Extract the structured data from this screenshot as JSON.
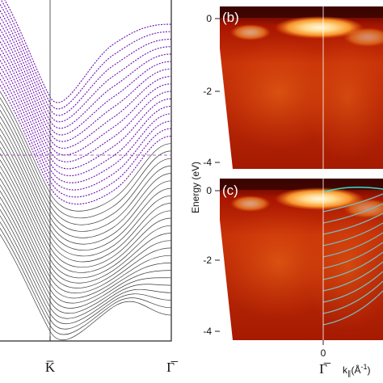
{
  "chart_data": [
    {
      "panel": "a",
      "type": "line",
      "title": "",
      "x_tick_labels": [
        "K̅",
        "Γ̅"
      ],
      "y_tick_labels": [],
      "band_count": 40,
      "highlighted_bands": 16,
      "fermi_level_line": "dashed",
      "colors": {
        "bands": "#3a3a3a",
        "highlight": "#6b0fb0",
        "frame": "#222222"
      }
    },
    {
      "panel": "b",
      "type": "heatmap",
      "panel_label": "(b)",
      "ylim": [
        -4.4,
        0.25
      ],
      "y_ticks": [
        0,
        -2,
        -4
      ],
      "colormap": [
        "#7a0000",
        "#c82f08",
        "#f06a14",
        "#ffd48a",
        "#fff6d8"
      ],
      "features": [
        "top bright band near 0 eV",
        "cone at Gamma",
        "vertical line at k=0"
      ]
    },
    {
      "panel": "c",
      "type": "heatmap",
      "panel_label": "(c)",
      "ylim": [
        -4.4,
        0.25
      ],
      "y_ticks": [
        0,
        -2,
        -4
      ],
      "ylabel": "Energy (eV)",
      "xlabel": "k∥(Å⁻¹)",
      "x_tick_labels": [
        "0",
        "Γ̅"
      ],
      "overlay_band_count": 11,
      "overlay_color": "#7ab8b8",
      "colormap": [
        "#7a0000",
        "#c82f08",
        "#f06a14",
        "#ffd48a",
        "#fff6d8"
      ]
    }
  ],
  "labels": {
    "panel_b": "(b)",
    "panel_c": "(c)",
    "ylabel": "Energy (eV)",
    "k_bar": "K̅",
    "gamma_bar_a": "Γ̅",
    "gamma_bar_c": "Γ̅",
    "zero": "0",
    "xlabel_k": "k",
    "xlabel_sub": "∥",
    "xlabel_unit": "(Å",
    "xlabel_exp": "-1",
    "xlabel_close": ")",
    "ytick_b_0": "0",
    "ytick_b_m2": "-2",
    "ytick_b_m4": "-4",
    "ytick_c_0": "0",
    "ytick_c_m2": "-2",
    "ytick_c_m4": "-4"
  }
}
